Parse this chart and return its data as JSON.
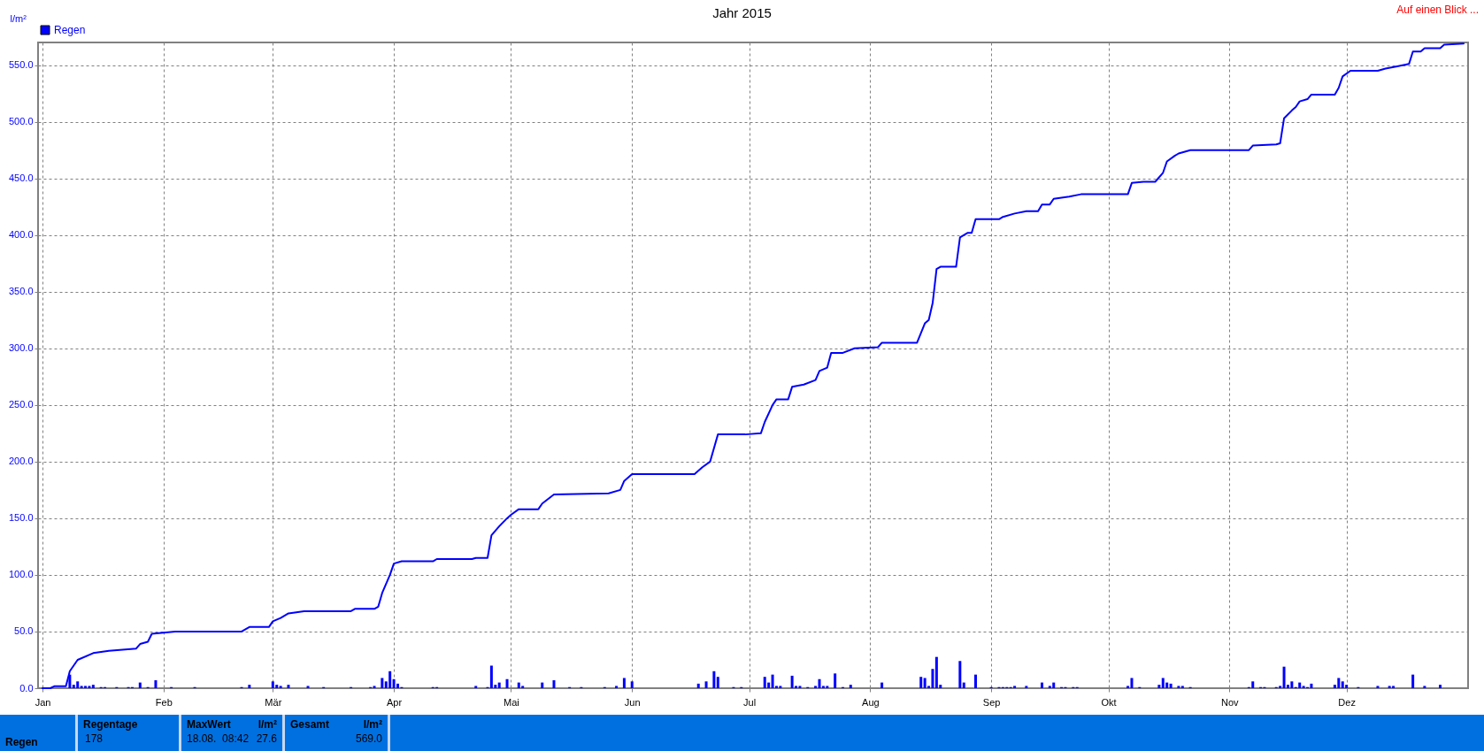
{
  "chart_data": {
    "type": "bar",
    "title": "Jahr 2015",
    "ylabel": "l/m²",
    "legend": "top left",
    "grid": true,
    "xlim": [
      "2015-01-01",
      "2015-12-31"
    ],
    "xticks": [
      {
        "value": "2015-01-01",
        "label": "Jan"
      },
      {
        "value": "2015-02-01",
        "label": "Feb"
      },
      {
        "value": "2015-03-01",
        "label": "Mär"
      },
      {
        "value": "2015-04-01",
        "label": "Apr"
      },
      {
        "value": "2015-05-01",
        "label": "Mai"
      },
      {
        "value": "2015-06-01",
        "label": "Jun"
      },
      {
        "value": "2015-07-01",
        "label": "Jul"
      },
      {
        "value": "2015-08-01",
        "label": "Aug"
      },
      {
        "value": "2015-09-01",
        "label": "Sep"
      },
      {
        "value": "2015-10-01",
        "label": "Okt"
      },
      {
        "value": "2015-11-01",
        "label": "Nov"
      },
      {
        "value": "2015-12-01",
        "label": "Dez"
      }
    ],
    "ylim": [
      0,
      570
    ],
    "yticks": [
      {
        "value": 0,
        "label": "0.0"
      },
      {
        "value": 50,
        "label": "50.0"
      },
      {
        "value": 100,
        "label": "100.0"
      },
      {
        "value": 150,
        "label": "150.0"
      },
      {
        "value": 200,
        "label": "200.0"
      },
      {
        "value": 250,
        "label": "250.0"
      },
      {
        "value": 300,
        "label": "300.0"
      },
      {
        "value": 350,
        "label": "350.0"
      },
      {
        "value": 400,
        "label": "400.0"
      },
      {
        "value": 450,
        "label": "450.0"
      },
      {
        "value": 500,
        "label": "500.0"
      },
      {
        "value": 550,
        "label": "550.0"
      }
    ],
    "series": [
      {
        "name": "Regen",
        "color": "#0000ff",
        "x": [
          "2015-01-08",
          "2015-01-09",
          "2015-01-10",
          "2015-01-11",
          "2015-01-12",
          "2015-01-13",
          "2015-01-14",
          "2015-01-16",
          "2015-01-17",
          "2015-01-20",
          "2015-01-23",
          "2015-01-24",
          "2015-01-26",
          "2015-01-28",
          "2015-01-30",
          "2015-02-03",
          "2015-02-09",
          "2015-02-21",
          "2015-02-23",
          "2015-03-01",
          "2015-03-02",
          "2015-03-03",
          "2015-03-05",
          "2015-03-10",
          "2015-03-14",
          "2015-03-21",
          "2015-03-26",
          "2015-03-27",
          "2015-03-29",
          "2015-03-30",
          "2015-03-31",
          "2015-04-01",
          "2015-04-02",
          "2015-04-03",
          "2015-04-11",
          "2015-04-12",
          "2015-04-22",
          "2015-04-25",
          "2015-04-26",
          "2015-04-27",
          "2015-04-28",
          "2015-04-30",
          "2015-05-03",
          "2015-05-04",
          "2015-05-09",
          "2015-05-12",
          "2015-05-16",
          "2015-05-19",
          "2015-05-25",
          "2015-05-28",
          "2015-05-30",
          "2015-06-01",
          "2015-06-18",
          "2015-06-20",
          "2015-06-22",
          "2015-06-23",
          "2015-06-27",
          "2015-06-29",
          "2015-07-05",
          "2015-07-06",
          "2015-07-07",
          "2015-07-08",
          "2015-07-09",
          "2015-07-12",
          "2015-07-13",
          "2015-07-14",
          "2015-07-16",
          "2015-07-18",
          "2015-07-19",
          "2015-07-20",
          "2015-07-21",
          "2015-07-23",
          "2015-07-25",
          "2015-07-27",
          "2015-08-04",
          "2015-08-14",
          "2015-08-15",
          "2015-08-16",
          "2015-08-17",
          "2015-08-18",
          "2015-08-19",
          "2015-08-24",
          "2015-08-25",
          "2015-08-28",
          "2015-09-01",
          "2015-09-03",
          "2015-09-04",
          "2015-09-05",
          "2015-09-06",
          "2015-09-07",
          "2015-09-10",
          "2015-09-14",
          "2015-09-16",
          "2015-09-17",
          "2015-09-19",
          "2015-09-20",
          "2015-09-22",
          "2015-09-23",
          "2015-10-06",
          "2015-10-07",
          "2015-10-09",
          "2015-10-14",
          "2015-10-15",
          "2015-10-16",
          "2015-10-17",
          "2015-10-19",
          "2015-10-20",
          "2015-10-22",
          "2015-11-06",
          "2015-11-07",
          "2015-11-09",
          "2015-11-10",
          "2015-11-13",
          "2015-11-14",
          "2015-11-15",
          "2015-11-16",
          "2015-11-17",
          "2015-11-18",
          "2015-11-19",
          "2015-11-20",
          "2015-11-21",
          "2015-11-22",
          "2015-11-28",
          "2015-11-29",
          "2015-11-30",
          "2015-12-01",
          "2015-12-04",
          "2015-12-09",
          "2015-12-12",
          "2015-12-13",
          "2015-12-18",
          "2015-12-21",
          "2015-12-25"
        ],
        "values": [
          12,
          3,
          6,
          2,
          2,
          2,
          3,
          1,
          1,
          1,
          1,
          1,
          5,
          1,
          7,
          1,
          1,
          1,
          3,
          6,
          3,
          2,
          3,
          2,
          1,
          1,
          1,
          2,
          9,
          6,
          15,
          8,
          4,
          1,
          1,
          1,
          2,
          1,
          20,
          3,
          5,
          8,
          5,
          2,
          5,
          7,
          1,
          1,
          1,
          2,
          9,
          6,
          4,
          6,
          15,
          10,
          1,
          1,
          10,
          5,
          12,
          2,
          2,
          11,
          2,
          2,
          1,
          2,
          8,
          2,
          2,
          13,
          1,
          3,
          5,
          10,
          9,
          2,
          17,
          27.6,
          3,
          24,
          5,
          12,
          1,
          1,
          1,
          1,
          1,
          2,
          2,
          5,
          2,
          5,
          1,
          1,
          1,
          1,
          2,
          9,
          1,
          3,
          9,
          5,
          4,
          2,
          2,
          1,
          1,
          6,
          1,
          1,
          1,
          2,
          19,
          3,
          6,
          1,
          5,
          2,
          1,
          4,
          3,
          9,
          6,
          3,
          1,
          2,
          2,
          2,
          12,
          2,
          3
        ]
      },
      {
        "type": "line",
        "color": "#0000ff",
        "x": [
          "2015-01-01",
          "2015-01-03",
          "2015-01-04",
          "2015-01-07",
          "2015-01-08",
          "2015-01-10",
          "2015-01-14",
          "2015-01-18",
          "2015-01-25",
          "2015-01-26",
          "2015-01-28",
          "2015-01-29",
          "2015-02-04",
          "2015-02-21",
          "2015-02-23",
          "2015-02-28",
          "2015-03-01",
          "2015-03-03",
          "2015-03-05",
          "2015-03-09",
          "2015-03-21",
          "2015-03-22",
          "2015-03-27",
          "2015-03-28",
          "2015-03-29",
          "2015-03-31",
          "2015-04-01",
          "2015-04-03",
          "2015-04-11",
          "2015-04-12",
          "2015-04-21",
          "2015-04-22",
          "2015-04-25",
          "2015-04-26",
          "2015-04-28",
          "2015-04-30",
          "2015-05-01",
          "2015-05-03",
          "2015-05-08",
          "2015-05-09",
          "2015-05-12",
          "2015-05-26",
          "2015-05-29",
          "2015-05-30",
          "2015-06-01",
          "2015-06-17",
          "2015-06-19",
          "2015-06-21",
          "2015-06-23",
          "2015-06-30",
          "2015-07-04",
          "2015-07-05",
          "2015-07-07",
          "2015-07-08",
          "2015-07-11",
          "2015-07-12",
          "2015-07-15",
          "2015-07-18",
          "2015-07-19",
          "2015-07-21",
          "2015-07-22",
          "2015-07-25",
          "2015-07-28",
          "2015-08-03",
          "2015-08-04",
          "2015-08-13",
          "2015-08-15",
          "2015-08-16",
          "2015-08-17",
          "2015-08-18",
          "2015-08-19",
          "2015-08-23",
          "2015-08-24",
          "2015-08-26",
          "2015-08-27",
          "2015-08-28",
          "2015-09-03",
          "2015-09-04",
          "2015-09-07",
          "2015-09-10",
          "2015-09-13",
          "2015-09-14",
          "2015-09-16",
          "2015-09-17",
          "2015-09-21",
          "2015-09-24",
          "2015-10-06",
          "2015-10-07",
          "2015-10-10",
          "2015-10-13",
          "2015-10-15",
          "2015-10-16",
          "2015-10-18",
          "2015-10-19",
          "2015-10-22",
          "2015-11-06",
          "2015-11-07",
          "2015-11-13",
          "2015-11-14",
          "2015-11-15",
          "2015-11-17",
          "2015-11-18",
          "2015-11-19",
          "2015-11-21",
          "2015-11-22",
          "2015-11-28",
          "2015-11-29",
          "2015-11-30",
          "2015-12-02",
          "2015-12-09",
          "2015-12-11",
          "2015-12-14",
          "2015-12-17",
          "2015-12-18",
          "2015-12-20",
          "2015-12-21",
          "2015-12-25",
          "2015-12-26",
          "2015-12-31"
        ],
        "values": [
          0,
          0,
          1.7,
          1.7,
          15,
          25,
          31,
          33,
          35,
          39,
          41,
          48,
          50,
          50,
          54,
          54,
          59,
          62,
          66,
          68,
          68,
          70,
          70,
          72,
          84,
          100,
          110,
          112,
          112,
          114,
          114,
          115,
          115,
          135,
          143,
          150,
          153,
          158,
          158,
          163,
          171,
          172,
          175,
          183,
          189,
          189,
          195,
          200,
          224,
          224,
          225,
          235,
          250,
          255,
          255,
          266,
          268,
          272,
          280,
          283,
          296,
          296,
          300,
          301,
          305,
          305,
          322,
          325,
          340,
          370,
          372,
          372,
          398,
          402,
          402,
          414,
          414,
          416,
          419,
          421,
          421,
          427,
          427,
          432,
          434,
          436,
          436,
          446,
          447,
          447,
          455,
          465,
          470,
          472,
          475,
          475,
          479,
          480,
          481,
          503,
          510,
          513,
          518,
          520,
          524,
          524,
          530,
          540,
          545,
          545,
          547,
          549,
          551,
          562,
          562,
          565,
          565,
          568,
          569
        ]
      }
    ],
    "annotations": [
      "Auf einen Blick ...",
      "Regen",
      "Regentage",
      "178",
      "MaxWert",
      "l/m²",
      "18.08.  08:42",
      "27.6",
      "Gesamt",
      "l/m²",
      "569.0"
    ]
  }
}
